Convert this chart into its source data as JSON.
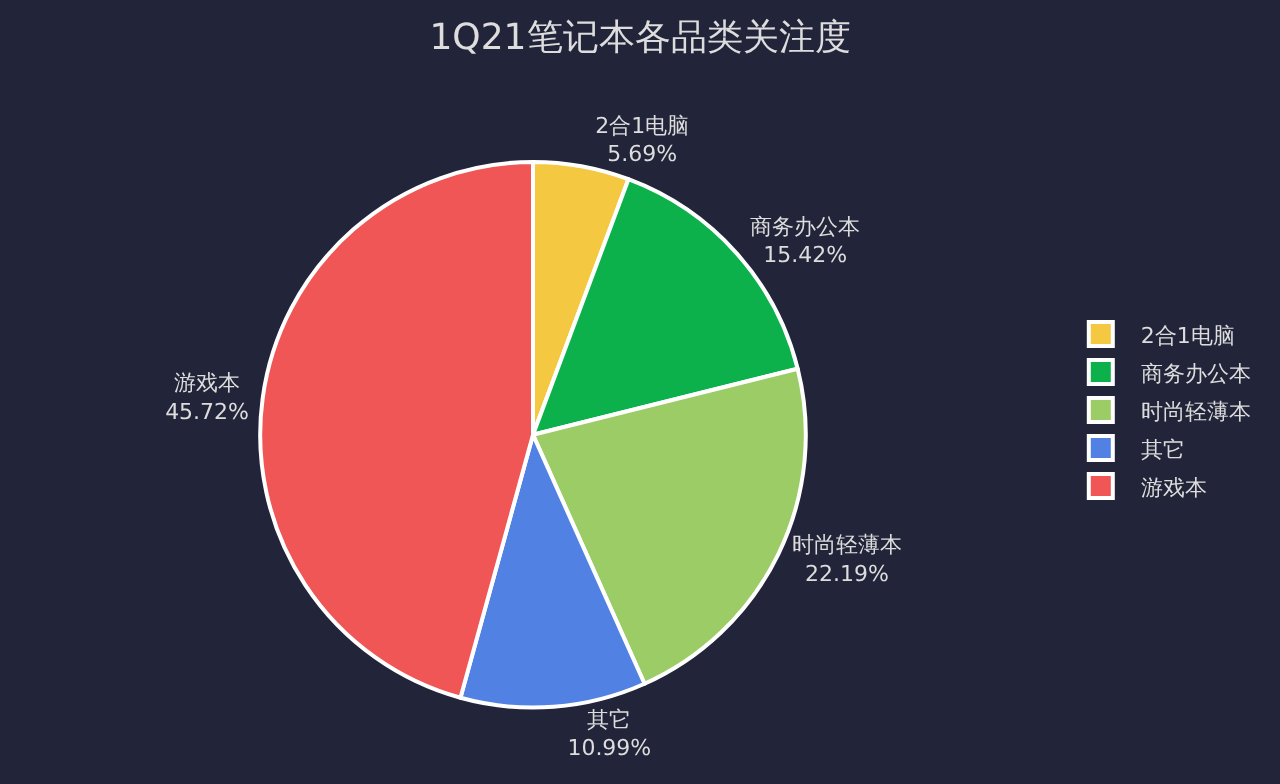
{
  "chart_data": {
    "type": "pie",
    "title": "1Q21笔记本各品类关注度",
    "categories": [
      "2合1电脑",
      "商务办公本",
      "时尚轻薄本",
      "其它",
      "游戏本"
    ],
    "values": [
      5.69,
      15.42,
      22.19,
      10.99,
      45.72
    ],
    "value_labels": [
      "5.69%",
      "15.42%",
      "22.19%",
      "10.99%",
      "45.72%"
    ],
    "colors": [
      "#f5c842",
      "#0db14b",
      "#9ccc65",
      "#5182e3",
      "#f05656"
    ],
    "legend": "right"
  }
}
